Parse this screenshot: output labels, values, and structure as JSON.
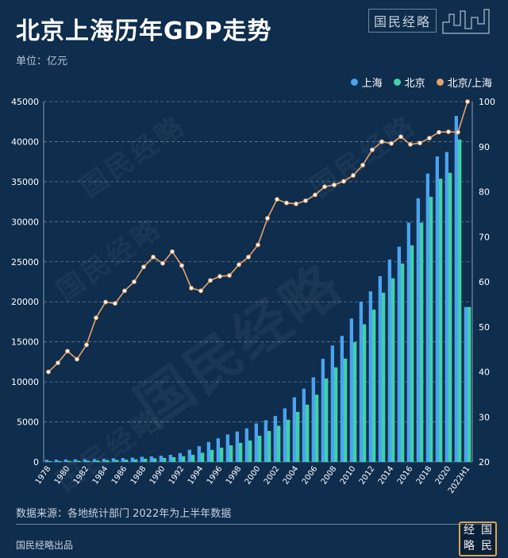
{
  "header": {
    "title": "北京上海历年GDP走势",
    "unit": "单位：亿元",
    "brand": "国民经略"
  },
  "legend": {
    "shanghai": "上海",
    "beijing": "北京",
    "ratio": "北京/上海"
  },
  "footer": {
    "source": "数据来源：各地统计部门 2022年为上半年数据",
    "publisher": "国民经略出品"
  },
  "seal": [
    "经",
    "国",
    "略",
    "民"
  ],
  "colors": {
    "background": "#0f2d4d",
    "shanghai": "#4aa3f0",
    "beijing": "#3fd1a8",
    "ratio": "#e6a36a",
    "grid": "#8aa0b6"
  },
  "chart_data": {
    "type": "bar",
    "categories": [
      "1978",
      "1979",
      "1980",
      "1981",
      "1982",
      "1983",
      "1984",
      "1985",
      "1986",
      "1987",
      "1988",
      "1989",
      "1990",
      "1991",
      "1992",
      "1993",
      "1994",
      "1995",
      "1996",
      "1997",
      "1998",
      "1999",
      "2000",
      "2001",
      "2002",
      "2003",
      "2004",
      "2005",
      "2006",
      "2007",
      "2008",
      "2009",
      "2010",
      "2011",
      "2012",
      "2013",
      "2014",
      "2015",
      "2016",
      "2017",
      "2018",
      "2019",
      "2020",
      "2021",
      "2022H1"
    ],
    "x_tick_labels": [
      "1978",
      "1980",
      "1982",
      "1984",
      "1986",
      "1988",
      "1990",
      "1992",
      "1994",
      "1996",
      "1998",
      "2000",
      "2002",
      "2004",
      "2006",
      "2008",
      "2010",
      "2012",
      "2014",
      "2016",
      "2018",
      "2020",
      "2022H1"
    ],
    "series": [
      {
        "name": "上海",
        "axis": "left",
        "kind": "bar",
        "values": [
          273,
          286,
          312,
          325,
          337,
          351,
          391,
          466,
          491,
          545,
          648,
          697,
          782,
          894,
          1114,
          1520,
          1972,
          2499,
          2958,
          3439,
          3801,
          4189,
          4812,
          5210,
          5741,
          6694,
          8073,
          9154,
          10572,
          12878,
          14536,
          15742,
          17916,
          20010,
          21306,
          23204,
          25269,
          26887,
          29887,
          32925,
          36012,
          38155,
          38701,
          43215,
          19349
        ]
      },
      {
        "name": "北京",
        "axis": "left",
        "kind": "bar",
        "values": [
          109,
          120,
          139,
          139,
          155,
          183,
          217,
          257,
          284,
          327,
          410,
          456,
          501,
          599,
          709,
          886,
          1145,
          1508,
          1790,
          2075,
          2376,
          2678,
          3278,
          3862,
          4525,
          5267,
          6252,
          7149,
          8387,
          10425,
          11813,
          12900,
          14964,
          17189,
          19025,
          21135,
          22926,
          24779,
          27041,
          29883,
          33106,
          35371,
          36103,
          40270,
          19353
        ]
      },
      {
        "name": "北京/上海",
        "axis": "right",
        "kind": "line",
        "values": [
          40,
          42,
          44.6,
          42.8,
          46,
          52,
          55.5,
          55.2,
          58,
          60,
          63.3,
          65.5,
          64.1,
          66.7,
          63.6,
          58.6,
          58,
          60.3,
          61.2,
          61.4,
          63.8,
          65.5,
          68.2,
          74.1,
          78.3,
          77.5,
          77.3,
          78,
          79.3,
          81.1,
          81.5,
          82.3,
          83.6,
          85.9,
          89.3,
          91.1,
          90.7,
          92.2,
          90.5,
          90.8,
          91.9,
          93.2,
          93.3,
          93.2,
          100
        ]
      }
    ],
    "y_left": {
      "min": 0,
      "max": 45000,
      "ticks": [
        0,
        5000,
        10000,
        15000,
        20000,
        25000,
        30000,
        35000,
        40000,
        45000
      ]
    },
    "y_right": {
      "min": 20,
      "max": 100,
      "ticks": [
        20,
        30,
        40,
        50,
        60,
        70,
        80,
        90,
        100
      ]
    },
    "grid": true,
    "legend_position": "top-right"
  }
}
